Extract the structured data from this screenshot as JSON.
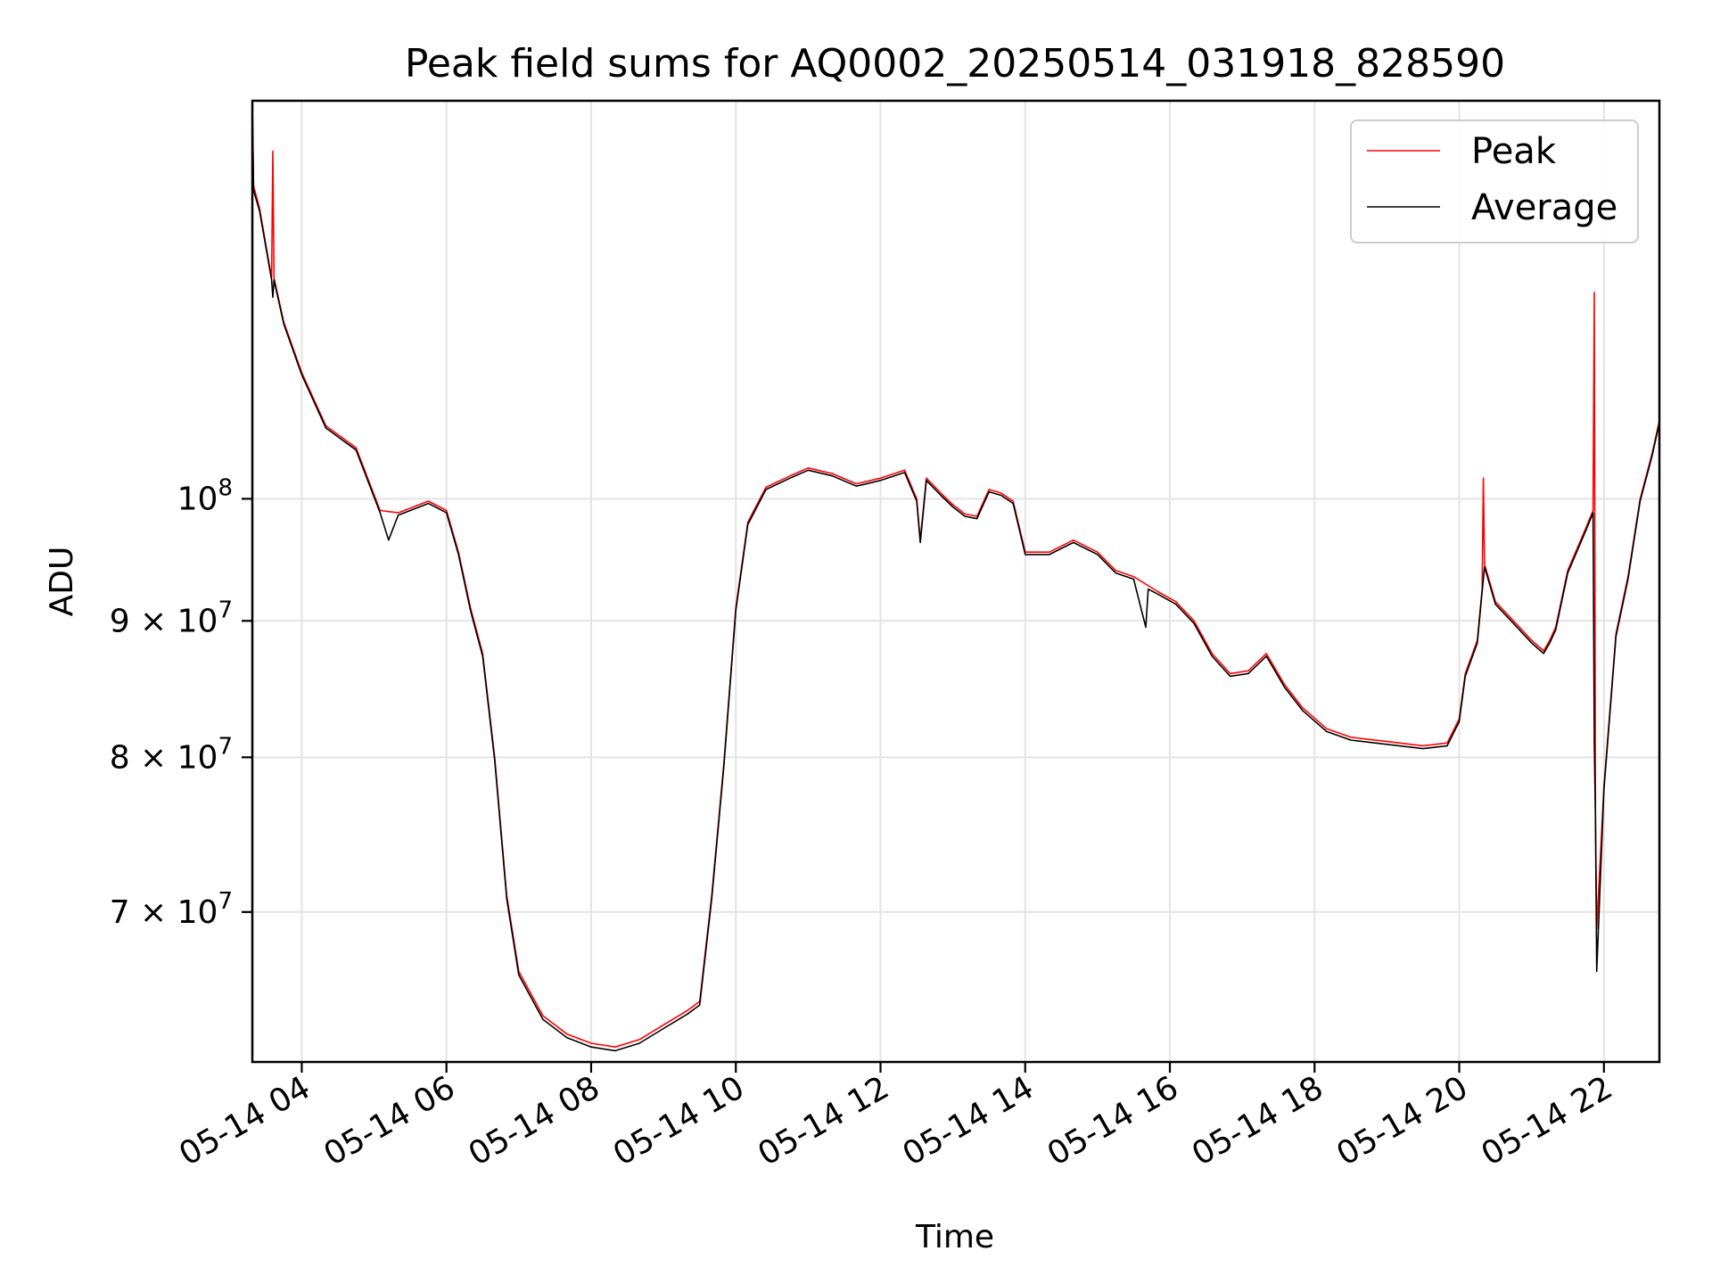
{
  "chart_data": {
    "type": "line",
    "title": "Peak field sums for AQ0002_20250514_031918_828590",
    "xlabel": "Time",
    "ylabel": "ADU",
    "y_scale": "log",
    "grid": true,
    "legend_position": "top-right",
    "xlim": [
      "05-14 03:19",
      "05-14 22:46"
    ],
    "ylim": [
      61500000,
      141000000
    ],
    "x_ticks": [
      "05-14 04",
      "05-14 06",
      "05-14 08",
      "05-14 10",
      "05-14 12",
      "05-14 14",
      "05-14 16",
      "05-14 18",
      "05-14 20",
      "05-14 22"
    ],
    "y_ticks": [
      {
        "value": 100000000,
        "label": "10^8",
        "base": "10",
        "exp": "8"
      },
      {
        "value": 90000000,
        "label": "9 × 10^7",
        "base": "9 × 10",
        "exp": "7"
      },
      {
        "value": 80000000,
        "label": "8 × 10^7",
        "base": "8 × 10",
        "exp": "7"
      },
      {
        "value": 70000000,
        "label": "7 × 10^7",
        "base": "7 × 10",
        "exp": "7"
      }
    ],
    "series": [
      {
        "name": "Peak",
        "color": "#ff0000",
        "points": [
          [
            "05-14 03:19",
            140500000
          ],
          [
            "05-14 03:20",
            131000000
          ],
          [
            "05-14 03:25",
            128500000
          ],
          [
            "05-14 03:35",
            121000000
          ],
          [
            "05-14 03:36",
            135000000
          ],
          [
            "05-14 03:37",
            121000000
          ],
          [
            "05-14 03:45",
            116500000
          ],
          [
            "05-14 04:00",
            111500000
          ],
          [
            "05-14 04:20",
            106500000
          ],
          [
            "05-14 04:45",
            104500000
          ],
          [
            "05-14 05:05",
            99000000
          ],
          [
            "05-14 05:20",
            98800000
          ],
          [
            "05-14 05:45",
            99800000
          ],
          [
            "05-14 06:00",
            99000000
          ],
          [
            "05-14 06:10",
            95500000
          ],
          [
            "05-14 06:20",
            91000000
          ],
          [
            "05-14 06:30",
            87500000
          ],
          [
            "05-14 06:40",
            80000000
          ],
          [
            "05-14 06:50",
            71000000
          ],
          [
            "05-14 07:00",
            66500000
          ],
          [
            "05-14 07:20",
            64000000
          ],
          [
            "05-14 07:40",
            63000000
          ],
          [
            "05-14 08:00",
            62500000
          ],
          [
            "05-14 08:20",
            62300000
          ],
          [
            "05-14 08:40",
            62700000
          ],
          [
            "05-14 09:00",
            63500000
          ],
          [
            "05-14 09:20",
            64300000
          ],
          [
            "05-14 09:30",
            64800000
          ],
          [
            "05-14 09:40",
            71000000
          ],
          [
            "05-14 09:50",
            79500000
          ],
          [
            "05-14 10:00",
            91000000
          ],
          [
            "05-14 10:10",
            98000000
          ],
          [
            "05-14 10:25",
            101000000
          ],
          [
            "05-14 10:45",
            102000000
          ],
          [
            "05-14 11:00",
            102700000
          ],
          [
            "05-14 11:20",
            102200000
          ],
          [
            "05-14 11:40",
            101300000
          ],
          [
            "05-14 12:00",
            101800000
          ],
          [
            "05-14 12:20",
            102500000
          ],
          [
            "05-14 12:30",
            100000000
          ],
          [
            "05-14 12:33",
            96500000
          ],
          [
            "05-14 12:38",
            101800000
          ],
          [
            "05-14 12:50",
            100500000
          ],
          [
            "05-14 13:00",
            99500000
          ],
          [
            "05-14 13:10",
            98700000
          ],
          [
            "05-14 13:20",
            98500000
          ],
          [
            "05-14 13:30",
            100800000
          ],
          [
            "05-14 13:40",
            100500000
          ],
          [
            "05-14 13:50",
            99800000
          ],
          [
            "05-14 14:00",
            95500000
          ],
          [
            "05-14 14:20",
            95500000
          ],
          [
            "05-14 14:40",
            96500000
          ],
          [
            "05-14 15:00",
            95500000
          ],
          [
            "05-14 15:15",
            94000000
          ],
          [
            "05-14 15:30",
            93500000
          ],
          [
            "05-14 15:50",
            92300000
          ],
          [
            "05-14 16:05",
            91500000
          ],
          [
            "05-14 16:20",
            90000000
          ],
          [
            "05-14 16:35",
            87500000
          ],
          [
            "05-14 16:50",
            86000000
          ],
          [
            "05-14 17:05",
            86200000
          ],
          [
            "05-14 17:20",
            87500000
          ],
          [
            "05-14 17:35",
            85200000
          ],
          [
            "05-14 17:50",
            83500000
          ],
          [
            "05-14 18:10",
            82000000
          ],
          [
            "05-14 18:30",
            81400000
          ],
          [
            "05-14 19:00",
            81100000
          ],
          [
            "05-14 19:30",
            80800000
          ],
          [
            "05-14 19:50",
            81000000
          ],
          [
            "05-14 20:00",
            82700000
          ],
          [
            "05-14 20:05",
            86000000
          ],
          [
            "05-14 20:15",
            88500000
          ],
          [
            "05-14 20:19",
            92500000
          ],
          [
            "05-14 20:20",
            101800000
          ],
          [
            "05-14 20:21",
            94500000
          ],
          [
            "05-14 20:30",
            91500000
          ],
          [
            "05-14 20:45",
            90000000
          ],
          [
            "05-14 21:00",
            88500000
          ],
          [
            "05-14 21:10",
            87700000
          ],
          [
            "05-14 21:15",
            88500000
          ],
          [
            "05-14 21:20",
            89500000
          ],
          [
            "05-14 21:30",
            94000000
          ],
          [
            "05-14 21:45",
            97500000
          ],
          [
            "05-14 21:51",
            99000000
          ],
          [
            "05-14 21:52",
            119500000
          ],
          [
            "05-14 21:53",
            76000000
          ],
          [
            "05-14 21:54",
            69000000
          ],
          [
            "05-14 22:00",
            78000000
          ],
          [
            "05-14 22:10",
            89000000
          ],
          [
            "05-14 22:20",
            93500000
          ],
          [
            "05-14 22:30",
            100000000
          ],
          [
            "05-14 22:40",
            104000000
          ],
          [
            "05-14 22:46",
            107000000
          ]
        ]
      },
      {
        "name": "Average",
        "color": "#000000",
        "points": [
          [
            "05-14 03:19",
            140500000
          ],
          [
            "05-14 03:20",
            130500000
          ],
          [
            "05-14 03:25",
            128200000
          ],
          [
            "05-14 03:35",
            120800000
          ],
          [
            "05-14 03:36",
            119000000
          ],
          [
            "05-14 03:37",
            120800000
          ],
          [
            "05-14 03:45",
            116300000
          ],
          [
            "05-14 04:00",
            111300000
          ],
          [
            "05-14 04:20",
            106300000
          ],
          [
            "05-14 04:45",
            104300000
          ],
          [
            "05-14 05:05",
            98800000
          ],
          [
            "05-14 05:12",
            96500000
          ],
          [
            "05-14 05:20",
            98600000
          ],
          [
            "05-14 05:45",
            99600000
          ],
          [
            "05-14 06:00",
            98800000
          ],
          [
            "05-14 06:10",
            95300000
          ],
          [
            "05-14 06:20",
            90800000
          ],
          [
            "05-14 06:30",
            87300000
          ],
          [
            "05-14 06:40",
            79800000
          ],
          [
            "05-14 06:50",
            70800000
          ],
          [
            "05-14 07:00",
            66300000
          ],
          [
            "05-14 07:20",
            63800000
          ],
          [
            "05-14 07:40",
            62800000
          ],
          [
            "05-14 08:00",
            62300000
          ],
          [
            "05-14 08:20",
            62100000
          ],
          [
            "05-14 08:40",
            62500000
          ],
          [
            "05-14 09:00",
            63300000
          ],
          [
            "05-14 09:20",
            64100000
          ],
          [
            "05-14 09:30",
            64600000
          ],
          [
            "05-14 09:40",
            70800000
          ],
          [
            "05-14 09:50",
            79300000
          ],
          [
            "05-14 10:00",
            90800000
          ],
          [
            "05-14 10:10",
            97800000
          ],
          [
            "05-14 10:25",
            100800000
          ],
          [
            "05-14 10:45",
            101800000
          ],
          [
            "05-14 11:00",
            102500000
          ],
          [
            "05-14 11:20",
            102000000
          ],
          [
            "05-14 11:40",
            101100000
          ],
          [
            "05-14 12:00",
            101600000
          ],
          [
            "05-14 12:20",
            102300000
          ],
          [
            "05-14 12:30",
            99800000
          ],
          [
            "05-14 12:33",
            96300000
          ],
          [
            "05-14 12:38",
            101600000
          ],
          [
            "05-14 12:50",
            100300000
          ],
          [
            "05-14 13:00",
            99300000
          ],
          [
            "05-14 13:10",
            98500000
          ],
          [
            "05-14 13:20",
            98300000
          ],
          [
            "05-14 13:30",
            100600000
          ],
          [
            "05-14 13:40",
            100300000
          ],
          [
            "05-14 13:50",
            99600000
          ],
          [
            "05-14 14:00",
            95300000
          ],
          [
            "05-14 14:20",
            95300000
          ],
          [
            "05-14 14:40",
            96300000
          ],
          [
            "05-14 15:00",
            95300000
          ],
          [
            "05-14 15:15",
            93800000
          ],
          [
            "05-14 15:30",
            93300000
          ],
          [
            "05-14 15:40",
            89500000
          ],
          [
            "05-14 15:42",
            92500000
          ],
          [
            "05-14 15:50",
            92100000
          ],
          [
            "05-14 16:05",
            91300000
          ],
          [
            "05-14 16:20",
            89800000
          ],
          [
            "05-14 16:35",
            87300000
          ],
          [
            "05-14 16:50",
            85800000
          ],
          [
            "05-14 17:05",
            86000000
          ],
          [
            "05-14 17:20",
            87300000
          ],
          [
            "05-14 17:35",
            85000000
          ],
          [
            "05-14 17:50",
            83300000
          ],
          [
            "05-14 18:10",
            81800000
          ],
          [
            "05-14 18:30",
            81200000
          ],
          [
            "05-14 19:00",
            80900000
          ],
          [
            "05-14 19:30",
            80600000
          ],
          [
            "05-14 19:50",
            80800000
          ],
          [
            "05-14 20:00",
            82500000
          ],
          [
            "05-14 20:05",
            85800000
          ],
          [
            "05-14 20:15",
            88300000
          ],
          [
            "05-14 20:19",
            92300000
          ],
          [
            "05-14 20:21",
            94300000
          ],
          [
            "05-14 20:30",
            91300000
          ],
          [
            "05-14 20:45",
            89800000
          ],
          [
            "05-14 21:00",
            88300000
          ],
          [
            "05-14 21:10",
            87500000
          ],
          [
            "05-14 21:15",
            88300000
          ],
          [
            "05-14 21:20",
            89300000
          ],
          [
            "05-14 21:30",
            93800000
          ],
          [
            "05-14 21:45",
            97300000
          ],
          [
            "05-14 21:51",
            98800000
          ],
          [
            "05-14 21:52",
            81000000
          ],
          [
            "05-14 21:53",
            76000000
          ],
          [
            "05-14 21:54",
            66500000
          ],
          [
            "05-14 22:00",
            77800000
          ],
          [
            "05-14 22:10",
            88800000
          ],
          [
            "05-14 22:20",
            93300000
          ],
          [
            "05-14 22:30",
            99800000
          ],
          [
            "05-14 22:40",
            103800000
          ],
          [
            "05-14 22:46",
            106800000
          ]
        ]
      }
    ]
  }
}
